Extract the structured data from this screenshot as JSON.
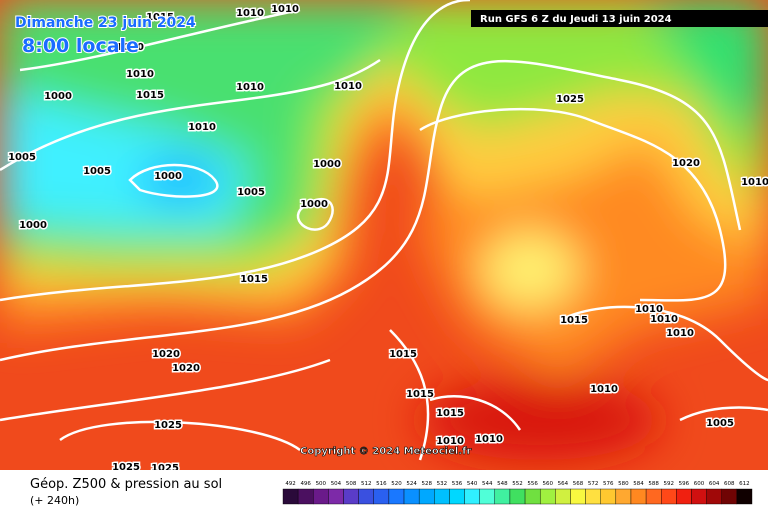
{
  "header": {
    "date": "Dimanche 23 juin 2024",
    "time": "8:00 locale",
    "run": "Run GFS 6 Z du Jeudi 13 juin 2024"
  },
  "copyright": "Copyright © 2024 Meteociel.fr",
  "isobar_labels": [
    "1015",
    "1010",
    "1010",
    "1020",
    "1010",
    "1015",
    "1000",
    "1010",
    "1010",
    "1010",
    "1005",
    "1005",
    "1000",
    "1000",
    "1005",
    "1000",
    "1000",
    "1025",
    "1020",
    "1010",
    "1015",
    "1010",
    "1010",
    "1015",
    "1010",
    "1020",
    "1020",
    "1015",
    "1015",
    "1010",
    "1015",
    "1025",
    "1010",
    "1010",
    "1005",
    "1025",
    "1025"
  ],
  "legend": {
    "title": "Géop. Z500 & pression au sol",
    "lead": "(+ 240h)",
    "levels": [
      492,
      496,
      500,
      504,
      508,
      512,
      516,
      520,
      524,
      528,
      532,
      536,
      540,
      544,
      548,
      552,
      556,
      560,
      564,
      568,
      572,
      576,
      580,
      584,
      588,
      592,
      596,
      600,
      604,
      608,
      612
    ],
    "colors": [
      "#2a0a3a",
      "#4b1060",
      "#6a1a8a",
      "#7d2aa8",
      "#5a3cc8",
      "#3a50e0",
      "#2a60f0",
      "#1a78ff",
      "#0a90ff",
      "#00a8ff",
      "#00c0ff",
      "#00d8ff",
      "#30f0ff",
      "#50ffd8",
      "#40f0a0",
      "#40e060",
      "#70e040",
      "#a0f040",
      "#d0f040",
      "#f8f840",
      "#ffe040",
      "#ffc830",
      "#ffa830",
      "#ff8820",
      "#ff6820",
      "#ff4818",
      "#f02010",
      "#d01010",
      "#a00808",
      "#700404",
      "#100000"
    ]
  }
}
